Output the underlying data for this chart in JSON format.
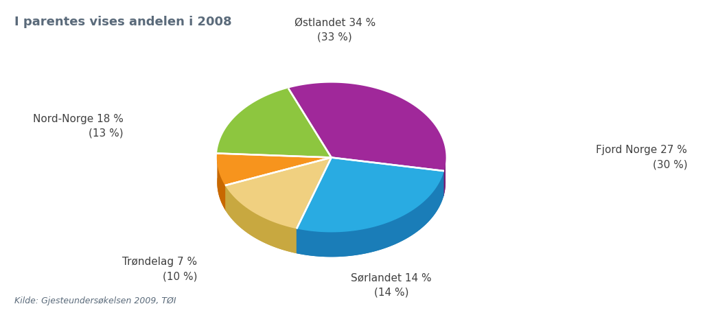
{
  "title": "I parentes vises andelen i 2008",
  "source": "Kilde: Gjesteundersøkelsen 2009, TØI",
  "slices": [
    {
      "label": "Østlandet 34 %\n(33 %)",
      "value": 34,
      "color": "#A0289A",
      "shadow_color": "#7A1E75"
    },
    {
      "label": "Fjord Norge 27 %\n(30 %)",
      "value": 27,
      "color": "#29ABE2",
      "shadow_color": "#1A7DB8"
    },
    {
      "label": "Sørlandet 14 %\n(14 %)",
      "value": 14,
      "color": "#F0D080",
      "shadow_color": "#C8A840"
    },
    {
      "label": "Trøndelag 7 %\n(10 %)",
      "value": 7,
      "color": "#F7941D",
      "shadow_color": "#C86800"
    },
    {
      "label": "Nord-Norge 18 %\n(13 %)",
      "value": 18,
      "color": "#8DC63F",
      "shadow_color": "#5A8C20"
    }
  ],
  "background_color": "#FFFFFF",
  "title_color": "#5A6A7A",
  "source_color": "#5A6A7A",
  "title_fontsize": 13,
  "label_fontsize": 11,
  "source_fontsize": 9
}
